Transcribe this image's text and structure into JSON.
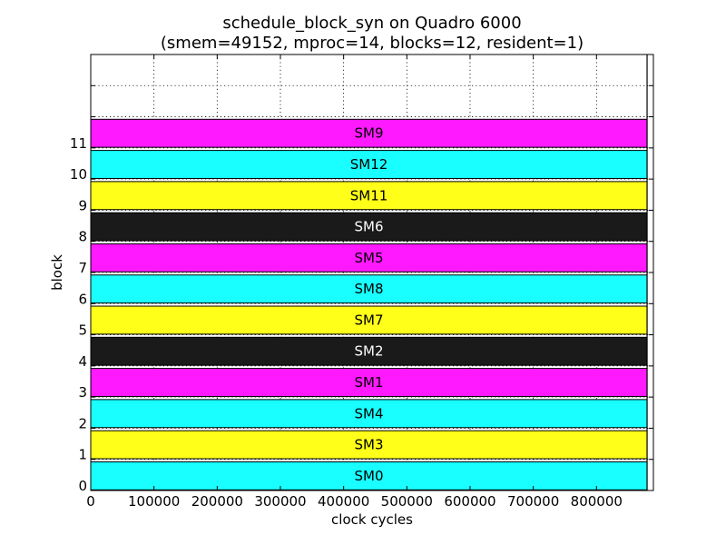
{
  "chart_data": {
    "type": "bar",
    "orientation": "horizontal",
    "title": "schedule_block_syn on Quadro 6000",
    "subtitle": "(smem=49152, mproc=14, blocks=12, resident=1)",
    "xlabel": "clock cycles",
    "ylabel": "block",
    "xlim": [
      0,
      890000
    ],
    "ylim": [
      0,
      14
    ],
    "grid": true,
    "xticks": [
      0,
      100000,
      200000,
      300000,
      400000,
      500000,
      600000,
      700000,
      800000
    ],
    "yticks": [
      0,
      1,
      2,
      3,
      4,
      5,
      6,
      7,
      8,
      9,
      10,
      11
    ],
    "ytick_labels": [
      "0",
      "1",
      "2",
      "3",
      "4",
      "5",
      "6",
      "7",
      "8",
      "9",
      "10",
      "11"
    ],
    "grid_ticks": [
      0,
      1,
      2,
      3,
      4,
      5,
      6,
      7,
      8,
      9,
      10,
      11,
      12,
      13
    ],
    "end_marker": 880000,
    "bars": [
      {
        "block": 0,
        "label": "SM0",
        "start": 0,
        "end": 880000,
        "color": "#19ffff",
        "text_color": "#000000"
      },
      {
        "block": 1,
        "label": "SM3",
        "start": 0,
        "end": 880000,
        "color": "#ffff19",
        "text_color": "#000000"
      },
      {
        "block": 2,
        "label": "SM4",
        "start": 0,
        "end": 880000,
        "color": "#19ffff",
        "text_color": "#000000"
      },
      {
        "block": 3,
        "label": "SM1",
        "start": 0,
        "end": 880000,
        "color": "#ff19ff",
        "text_color": "#000000"
      },
      {
        "block": 4,
        "label": "SM2",
        "start": 0,
        "end": 880000,
        "color": "#1a1a1a",
        "text_color": "#ffffff"
      },
      {
        "block": 5,
        "label": "SM7",
        "start": 0,
        "end": 880000,
        "color": "#ffff19",
        "text_color": "#000000"
      },
      {
        "block": 6,
        "label": "SM8",
        "start": 0,
        "end": 880000,
        "color": "#19ffff",
        "text_color": "#000000"
      },
      {
        "block": 7,
        "label": "SM5",
        "start": 0,
        "end": 880000,
        "color": "#ff19ff",
        "text_color": "#000000"
      },
      {
        "block": 8,
        "label": "SM6",
        "start": 0,
        "end": 880000,
        "color": "#1a1a1a",
        "text_color": "#ffffff"
      },
      {
        "block": 9,
        "label": "SM11",
        "start": 0,
        "end": 880000,
        "color": "#ffff19",
        "text_color": "#000000"
      },
      {
        "block": 10,
        "label": "SM12",
        "start": 0,
        "end": 880000,
        "color": "#19ffff",
        "text_color": "#000000"
      },
      {
        "block": 11,
        "label": "SM9",
        "start": 0,
        "end": 880000,
        "color": "#ff19ff",
        "text_color": "#000000"
      }
    ]
  }
}
